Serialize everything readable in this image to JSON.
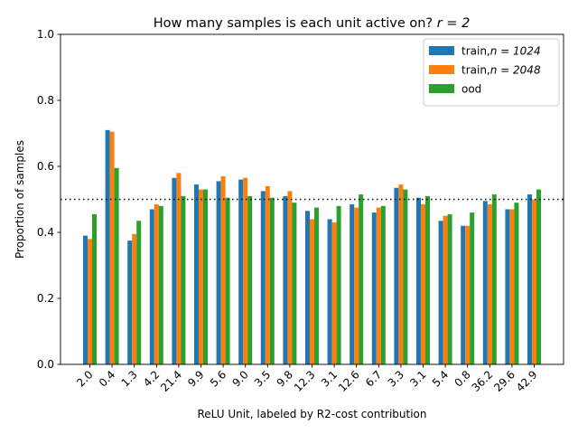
{
  "chart_data": {
    "type": "bar",
    "title": "How many samples is each unit active on? ",
    "title_math": "r = 2",
    "xlabel": "ReLU Unit, labeled by R2-cost contribution",
    "ylabel": "Proportion of samples",
    "ylim": [
      0,
      1.0
    ],
    "yticks": [
      "0.0",
      "0.2",
      "0.4",
      "0.6",
      "0.8",
      "1.0"
    ],
    "categories": [
      "2.0",
      "0.4",
      "1.3",
      "4.2",
      "21.4",
      "9.9",
      "5.6",
      "9.0",
      "3.5",
      "9.8",
      "12.3",
      "3.1",
      "12.6",
      "6.7",
      "3.3",
      "3.1",
      "5.4",
      "0.8",
      "36.2",
      "29.6",
      "42.9"
    ],
    "reference_line": 0.5,
    "legend_position": "top-right",
    "grid": false,
    "series": [
      {
        "name": "train,",
        "name_math": "n = 1024",
        "color": "#1f77b4",
        "values": [
          0.39,
          0.71,
          0.375,
          0.47,
          0.565,
          0.545,
          0.555,
          0.56,
          0.525,
          0.51,
          0.465,
          0.44,
          0.485,
          0.46,
          0.535,
          0.505,
          0.435,
          0.42,
          0.495,
          0.47,
          0.515
        ]
      },
      {
        "name": "train,",
        "name_math": "n = 2048",
        "color": "#ff7f0e",
        "values": [
          0.38,
          0.705,
          0.395,
          0.485,
          0.58,
          0.53,
          0.57,
          0.565,
          0.54,
          0.525,
          0.44,
          0.43,
          0.475,
          0.475,
          0.545,
          0.485,
          0.45,
          0.42,
          0.485,
          0.47,
          0.5
        ]
      },
      {
        "name": "ood",
        "color": "#2ca02c",
        "values": [
          0.455,
          0.595,
          0.435,
          0.48,
          0.51,
          0.53,
          0.505,
          0.51,
          0.505,
          0.49,
          0.475,
          0.48,
          0.515,
          0.48,
          0.53,
          0.51,
          0.455,
          0.46,
          0.515,
          0.49,
          0.53
        ]
      }
    ]
  }
}
